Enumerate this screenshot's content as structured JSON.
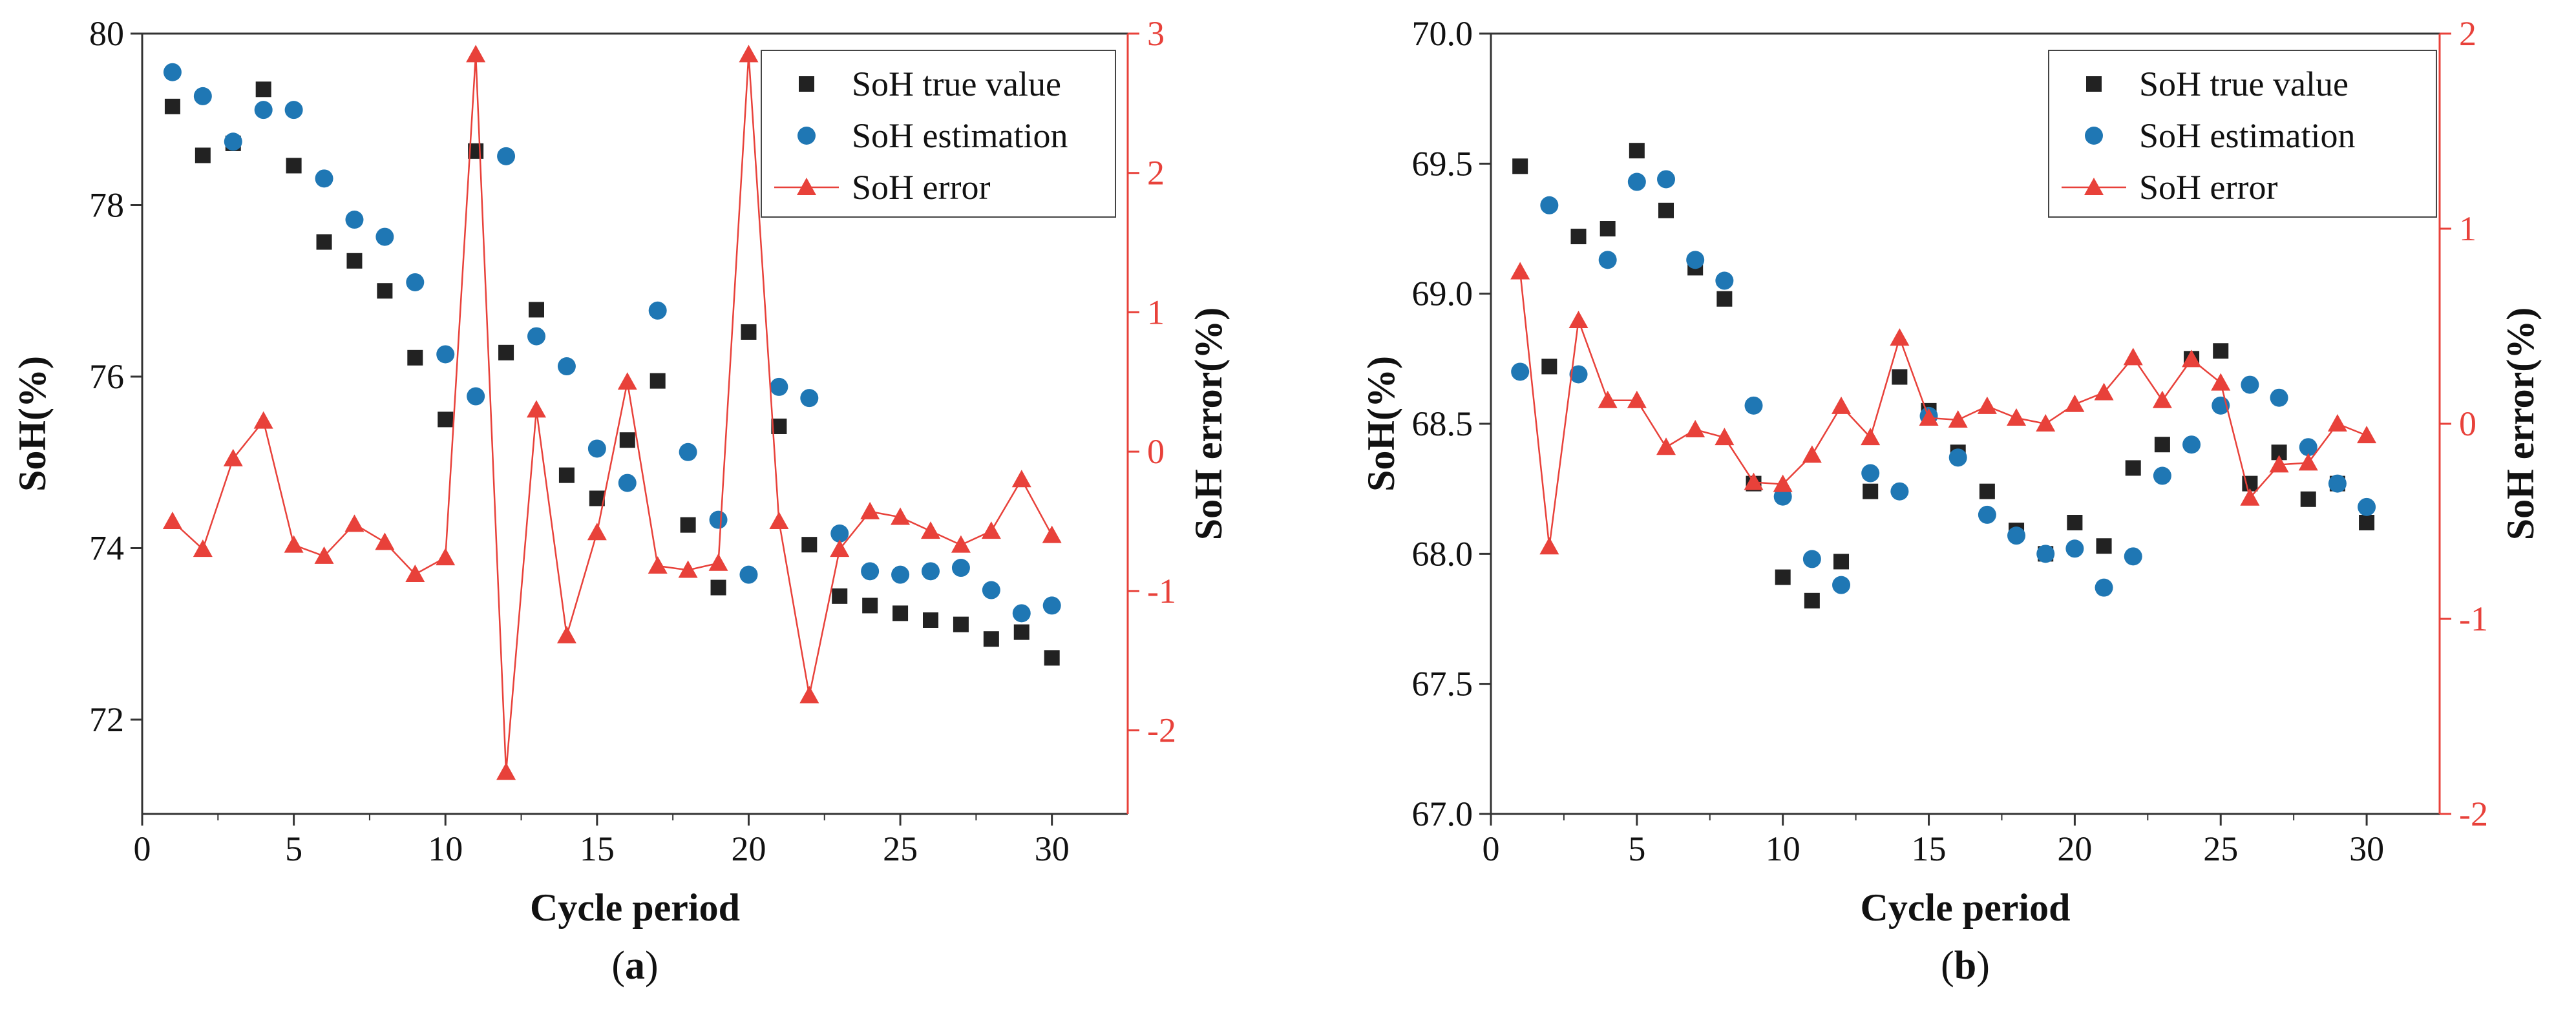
{
  "figure": {
    "panels": [
      "(a)",
      "(b)"
    ]
  },
  "colors": {
    "true_value": "#222222",
    "estimation": "#1f77b4",
    "error": "#e8413a",
    "axis": "#333333",
    "error_axis": "#e8413a"
  },
  "chart_data": [
    {
      "type": "scatter",
      "panel_label": "a",
      "xlabel": "Cycle period",
      "ylabel": "SoH(%)",
      "y2label": "SoH error(%)",
      "xlim": [
        0,
        32.5
      ],
      "ylim": [
        70.9,
        80
      ],
      "y2lim": [
        -2.6,
        3
      ],
      "xticks": [
        0,
        5,
        10,
        15,
        20,
        25,
        30
      ],
      "yticks": [
        72,
        74,
        76,
        78,
        80
      ],
      "y2ticks": [
        -2,
        -1,
        0,
        1,
        2,
        3
      ],
      "legend_position": "top-right",
      "legend": [
        "SoH true value",
        "SoH estimation",
        "SoH error"
      ],
      "x": [
        1,
        2,
        3,
        4,
        5,
        6,
        7,
        8,
        9,
        10,
        11,
        12,
        13,
        14,
        15,
        16,
        17,
        18,
        19,
        20,
        21,
        22,
        23,
        24,
        25,
        26,
        27,
        28,
        29,
        30
      ],
      "series": [
        {
          "name": "SoH true value",
          "axis": "left",
          "marker": "square",
          "values": [
            79.15,
            78.58,
            78.72,
            79.35,
            78.46,
            77.57,
            77.35,
            77.0,
            76.22,
            75.5,
            78.63,
            76.28,
            76.78,
            74.85,
            74.58,
            75.26,
            75.95,
            74.27,
            73.54,
            76.52,
            75.42,
            74.04,
            73.44,
            73.33,
            73.24,
            73.16,
            73.11,
            72.94,
            73.02,
            72.72
          ]
        },
        {
          "name": "SoH estimation",
          "axis": "left",
          "marker": "circle",
          "values": [
            79.55,
            79.27,
            78.74,
            79.11,
            79.11,
            78.31,
            77.83,
            77.63,
            77.1,
            76.26,
            75.77,
            78.57,
            76.47,
            76.12,
            75.16,
            74.76,
            76.77,
            75.12,
            74.33,
            73.69,
            75.88,
            75.75,
            74.17,
            73.73,
            73.69,
            73.73,
            73.77,
            73.51,
            73.24,
            73.33
          ]
        },
        {
          "name": "SoH error",
          "axis": "right",
          "marker": "triangle",
          "line": true,
          "values": [
            -0.5,
            -0.7,
            -0.05,
            0.22,
            -0.67,
            -0.75,
            -0.52,
            -0.65,
            -0.88,
            -0.76,
            2.85,
            -2.3,
            0.3,
            -1.32,
            -0.58,
            0.5,
            -0.82,
            -0.85,
            -0.8,
            2.85,
            -0.5,
            -1.75,
            -0.7,
            -0.43,
            -0.47,
            -0.57,
            -0.67,
            -0.57,
            -0.2,
            -0.6
          ]
        }
      ]
    },
    {
      "type": "scatter",
      "panel_label": "b",
      "xlabel": "Cycle period",
      "ylabel": "SoH(%)",
      "y2label": "SoH error(%)",
      "xlim": [
        0,
        32.5
      ],
      "ylim": [
        67,
        70
      ],
      "y2lim": [
        -2,
        2
      ],
      "xticks": [
        0,
        5,
        10,
        15,
        20,
        25,
        30
      ],
      "yticks": [
        67.0,
        67.5,
        68.0,
        68.5,
        69.0,
        69.5,
        70.0
      ],
      "ytick_labels": [
        "67.0",
        "67.5",
        "68.0",
        "68.5",
        "69.0",
        "69.5",
        "70.0"
      ],
      "y2ticks": [
        -2,
        -1,
        0,
        1,
        2
      ],
      "legend_position": "top-right",
      "legend": [
        "SoH true value",
        "SoH estimation",
        "SoH error"
      ],
      "x": [
        1,
        2,
        3,
        4,
        5,
        6,
        7,
        8,
        9,
        10,
        11,
        12,
        13,
        14,
        15,
        16,
        17,
        18,
        19,
        20,
        21,
        22,
        23,
        24,
        25,
        26,
        27,
        28,
        29,
        30
      ],
      "series": [
        {
          "name": "SoH true value",
          "axis": "left",
          "marker": "square",
          "values": [
            69.49,
            68.72,
            69.22,
            69.25,
            69.55,
            69.32,
            69.1,
            68.98,
            68.27,
            67.91,
            67.82,
            67.97,
            68.24,
            68.68,
            68.55,
            68.39,
            68.24,
            68.09,
            68.0,
            68.12,
            68.03,
            68.33,
            68.42,
            68.75,
            68.78,
            68.27,
            68.39,
            68.21,
            68.27,
            68.12
          ]
        },
        {
          "name": "SoH estimation",
          "axis": "left",
          "marker": "circle",
          "values": [
            68.7,
            69.34,
            68.69,
            69.13,
            69.43,
            69.44,
            69.13,
            69.05,
            68.57,
            68.22,
            67.98,
            67.88,
            68.31,
            68.24,
            68.53,
            68.37,
            68.15,
            68.07,
            68.0,
            68.02,
            67.87,
            67.99,
            68.3,
            68.42,
            68.57,
            68.65,
            68.6,
            68.41,
            68.27,
            68.18
          ]
        },
        {
          "name": "SoH error",
          "axis": "right",
          "marker": "triangle",
          "line": true,
          "values": [
            0.78,
            -0.63,
            0.53,
            0.12,
            0.12,
            -0.12,
            -0.03,
            -0.07,
            -0.3,
            -0.31,
            -0.16,
            0.09,
            -0.07,
            0.44,
            0.03,
            0.02,
            0.09,
            0.03,
            0.0,
            0.1,
            0.16,
            0.34,
            0.12,
            0.33,
            0.21,
            -0.38,
            -0.21,
            -0.2,
            0.0,
            -0.06
          ]
        }
      ]
    }
  ]
}
